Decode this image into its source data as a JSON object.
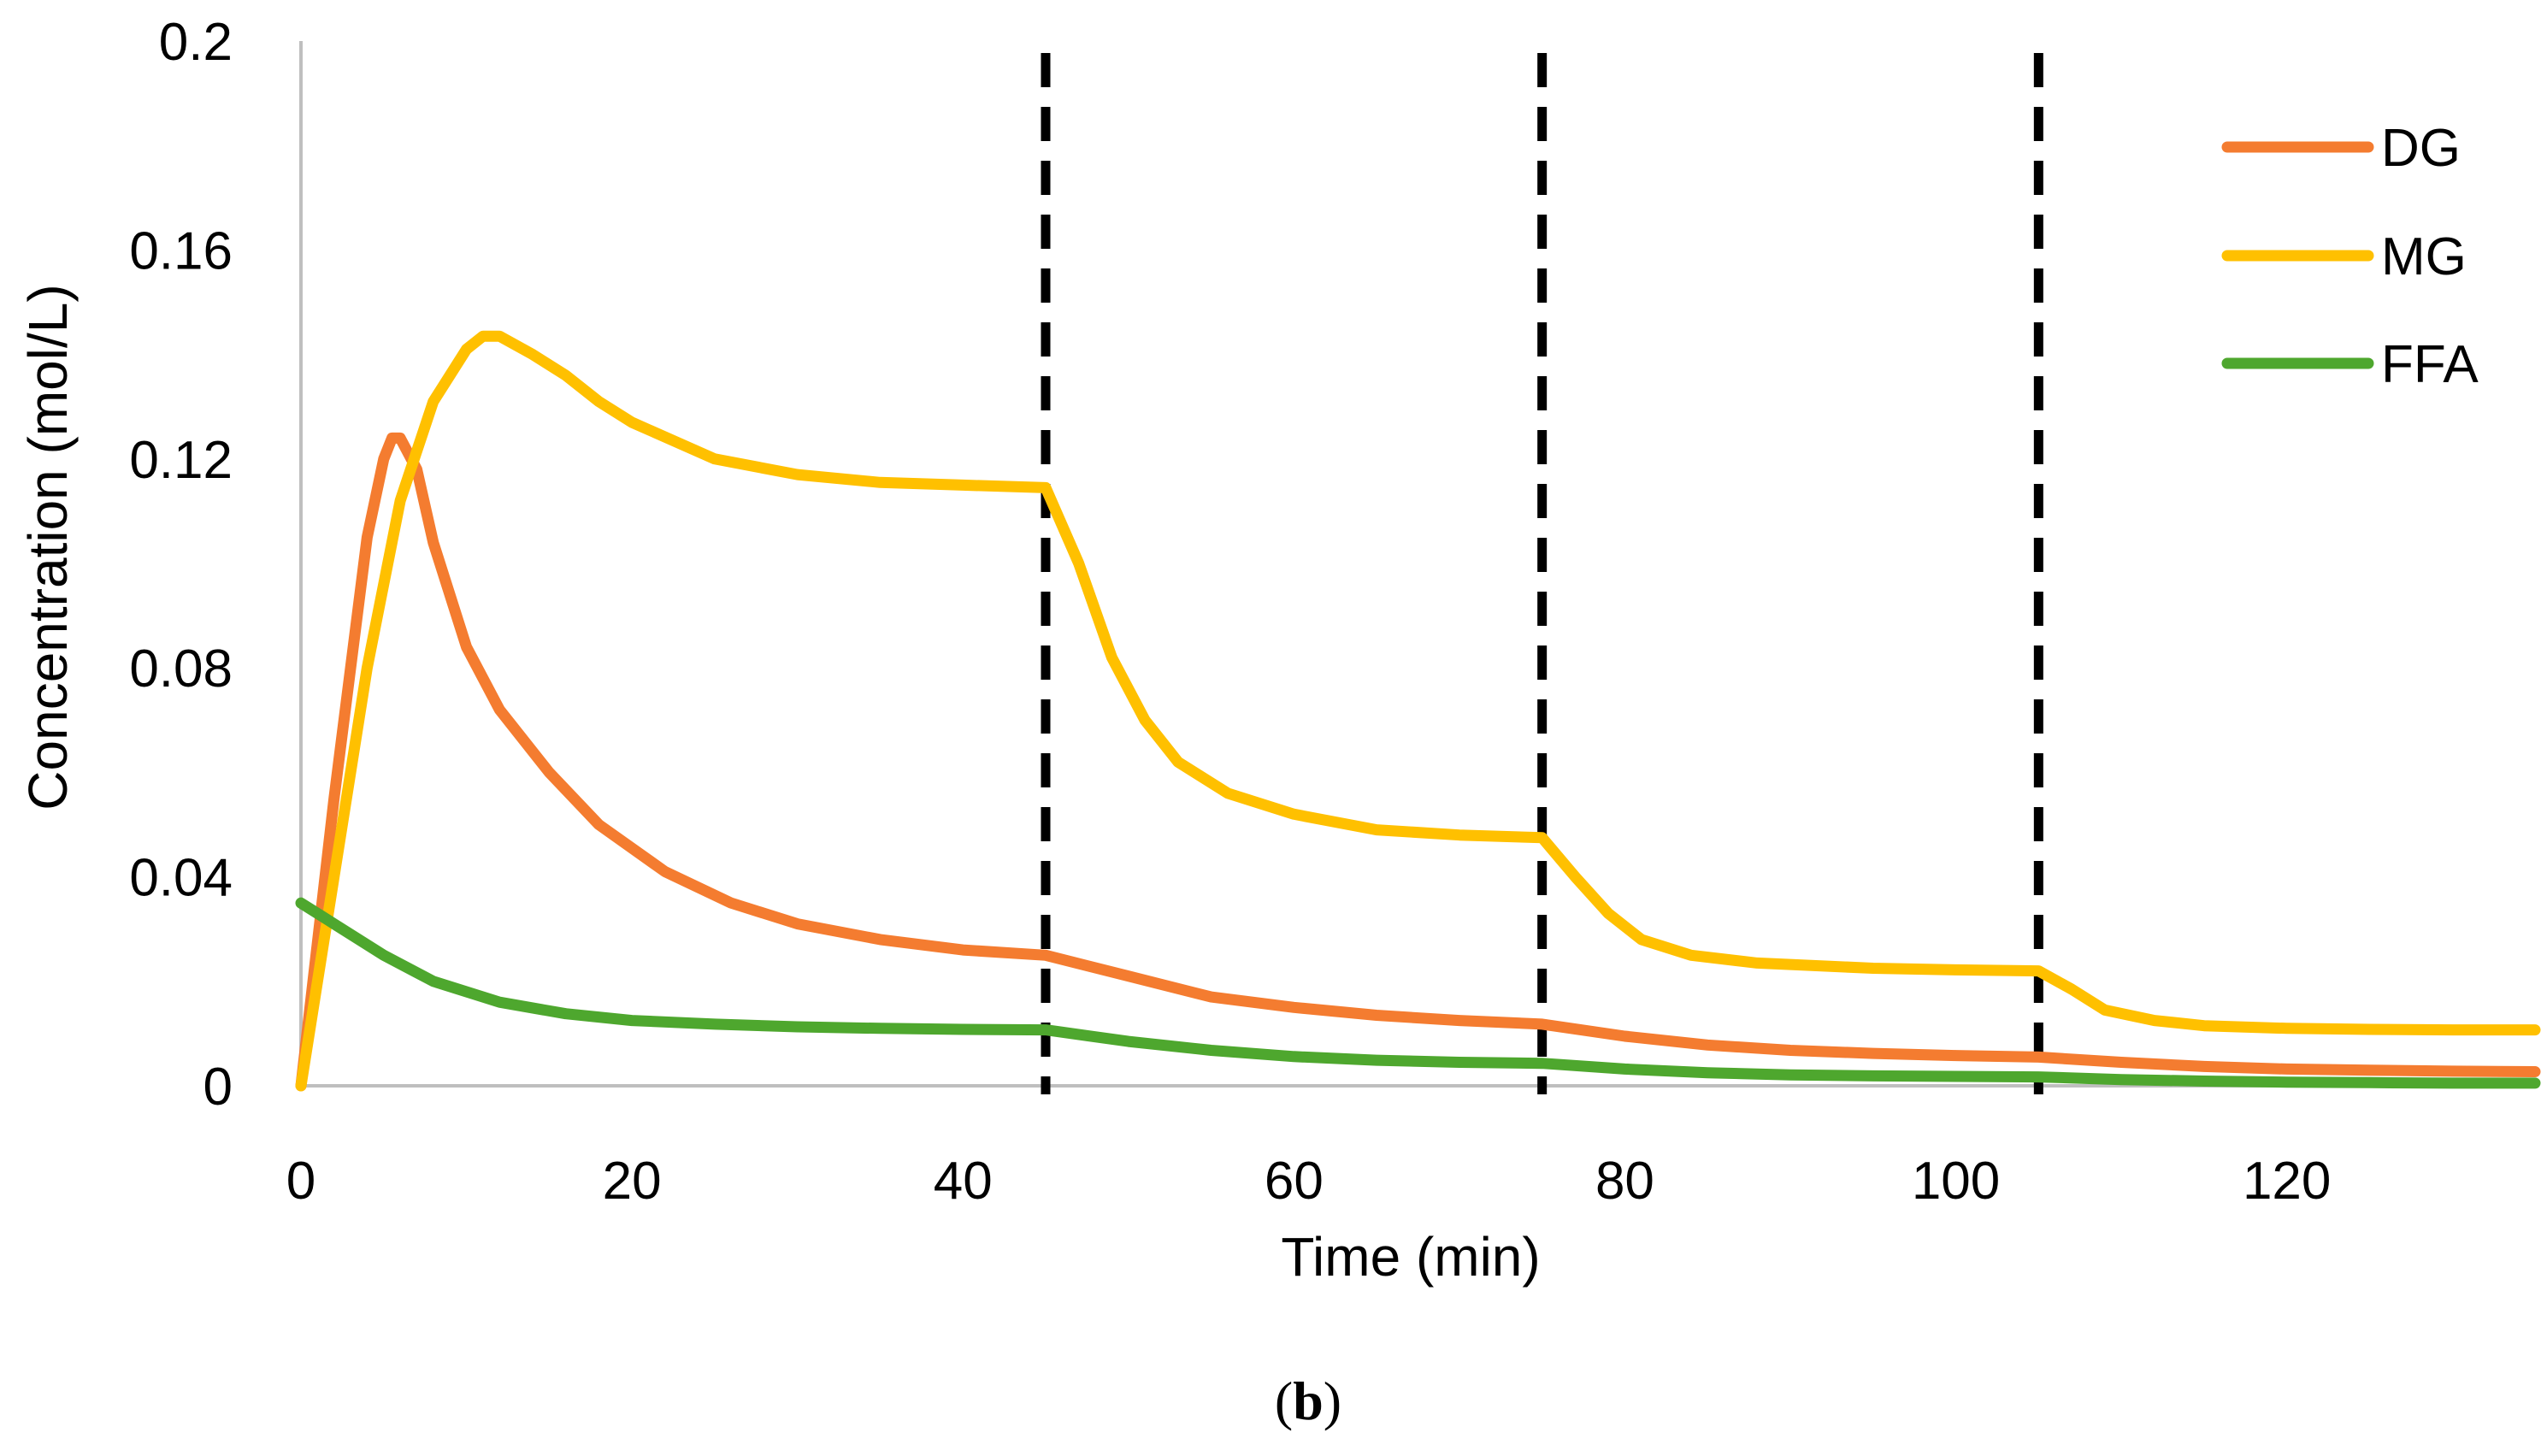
{
  "chart_data": {
    "type": "line",
    "title": "",
    "xlabel": "Time (min)",
    "ylabel": "Concentration (mol/L)",
    "xlim": [
      0,
      135
    ],
    "ylim": [
      0,
      0.2
    ],
    "xticks": [
      "0",
      "20",
      "40",
      "60",
      "80",
      "100",
      "120"
    ],
    "yticks": [
      "0",
      "0.04",
      "0.08",
      "0.12",
      "0.16",
      "0.2"
    ],
    "legend_position": "top-right",
    "vertical_markers": [
      45,
      75,
      105
    ],
    "series": [
      {
        "name": "DG",
        "color": "#F47C30",
        "points": [
          [
            0,
            0
          ],
          [
            2,
            0.055
          ],
          [
            4,
            0.105
          ],
          [
            5,
            0.12
          ],
          [
            5.5,
            0.124
          ],
          [
            6,
            0.124
          ],
          [
            7,
            0.118
          ],
          [
            8,
            0.104
          ],
          [
            10,
            0.084
          ],
          [
            12,
            0.072
          ],
          [
            15,
            0.06
          ],
          [
            18,
            0.05
          ],
          [
            22,
            0.041
          ],
          [
            26,
            0.035
          ],
          [
            30,
            0.031
          ],
          [
            35,
            0.028
          ],
          [
            40,
            0.026
          ],
          [
            45,
            0.025
          ],
          [
            50,
            0.021
          ],
          [
            55,
            0.017
          ],
          [
            60,
            0.015
          ],
          [
            65,
            0.0135
          ],
          [
            70,
            0.0125
          ],
          [
            75,
            0.0118
          ],
          [
            80,
            0.0095
          ],
          [
            85,
            0.0078
          ],
          [
            90,
            0.0068
          ],
          [
            95,
            0.0062
          ],
          [
            100,
            0.0058
          ],
          [
            105,
            0.0055
          ],
          [
            110,
            0.0045
          ],
          [
            115,
            0.0037
          ],
          [
            120,
            0.0032
          ],
          [
            125,
            0.003
          ],
          [
            130,
            0.0028
          ],
          [
            135,
            0.0027
          ]
        ]
      },
      {
        "name": "MG",
        "color": "#FFC000",
        "points": [
          [
            0,
            0
          ],
          [
            2,
            0.04
          ],
          [
            4,
            0.08
          ],
          [
            6,
            0.112
          ],
          [
            8,
            0.131
          ],
          [
            10,
            0.141
          ],
          [
            11,
            0.1435
          ],
          [
            12,
            0.1435
          ],
          [
            14,
            0.14
          ],
          [
            16,
            0.136
          ],
          [
            18,
            0.131
          ],
          [
            20,
            0.127
          ],
          [
            25,
            0.12
          ],
          [
            30,
            0.117
          ],
          [
            35,
            0.1155
          ],
          [
            40,
            0.115
          ],
          [
            45,
            0.1145
          ],
          [
            47,
            0.1
          ],
          [
            49,
            0.082
          ],
          [
            51,
            0.07
          ],
          [
            53,
            0.062
          ],
          [
            56,
            0.056
          ],
          [
            60,
            0.052
          ],
          [
            65,
            0.049
          ],
          [
            70,
            0.048
          ],
          [
            75,
            0.0475
          ],
          [
            77,
            0.04
          ],
          [
            79,
            0.033
          ],
          [
            81,
            0.028
          ],
          [
            84,
            0.025
          ],
          [
            88,
            0.0235
          ],
          [
            95,
            0.0225
          ],
          [
            100,
            0.0222
          ],
          [
            105,
            0.022
          ],
          [
            107,
            0.0185
          ],
          [
            109,
            0.0145
          ],
          [
            112,
            0.0125
          ],
          [
            115,
            0.0115
          ],
          [
            120,
            0.011
          ],
          [
            125,
            0.0108
          ],
          [
            130,
            0.0107
          ],
          [
            135,
            0.0107
          ]
        ]
      },
      {
        "name": "FFA",
        "color": "#4EA72E",
        "points": [
          [
            0,
            0.035
          ],
          [
            2,
            0.031
          ],
          [
            5,
            0.025
          ],
          [
            8,
            0.02
          ],
          [
            12,
            0.016
          ],
          [
            16,
            0.0138
          ],
          [
            20,
            0.0125
          ],
          [
            25,
            0.0118
          ],
          [
            30,
            0.0113
          ],
          [
            35,
            0.011
          ],
          [
            40,
            0.0108
          ],
          [
            45,
            0.0107
          ],
          [
            50,
            0.0085
          ],
          [
            55,
            0.0068
          ],
          [
            60,
            0.0056
          ],
          [
            65,
            0.0049
          ],
          [
            70,
            0.0045
          ],
          [
            75,
            0.0043
          ],
          [
            80,
            0.0032
          ],
          [
            85,
            0.0025
          ],
          [
            90,
            0.0021
          ],
          [
            95,
            0.0019
          ],
          [
            100,
            0.0018
          ],
          [
            105,
            0.0017
          ],
          [
            110,
            0.0012
          ],
          [
            115,
            0.0009
          ],
          [
            120,
            0.0007
          ],
          [
            125,
            0.0006
          ],
          [
            130,
            0.0005
          ],
          [
            135,
            0.0005
          ]
        ]
      }
    ]
  },
  "caption": {
    "open": "(",
    "letter": "b",
    "close": ")"
  }
}
